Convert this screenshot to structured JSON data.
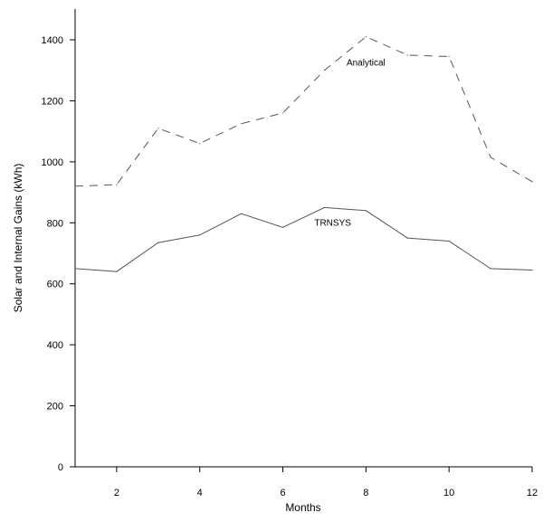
{
  "chart_data": {
    "type": "line",
    "title": "",
    "xlabel": "Months",
    "ylabel": "Solar and Internal Gains (kWh)",
    "xlim": [
      1,
      12
    ],
    "ylim": [
      0,
      1500
    ],
    "x_ticks": [
      2,
      4,
      6,
      8,
      10,
      12
    ],
    "y_ticks": [
      0,
      200,
      400,
      600,
      800,
      1000,
      1200,
      1400
    ],
    "grid": false,
    "x": [
      1,
      2,
      3,
      4,
      5,
      6,
      7,
      8,
      9,
      10,
      11,
      12
    ],
    "series": [
      {
        "name": "Analytical",
        "style": "dashed",
        "color": "#555555",
        "values": [
          920,
          925,
          1110,
          1060,
          1125,
          1160,
          1300,
          1410,
          1350,
          1345,
          1015,
          935
        ],
        "label_at": [
          8,
          1315
        ]
      },
      {
        "name": "TRNSYS",
        "style": "solid",
        "color": "#555555",
        "values": [
          650,
          640,
          735,
          760,
          830,
          785,
          850,
          840,
          750,
          740,
          650,
          645
        ],
        "label_at": [
          7.2,
          790
        ]
      }
    ]
  }
}
